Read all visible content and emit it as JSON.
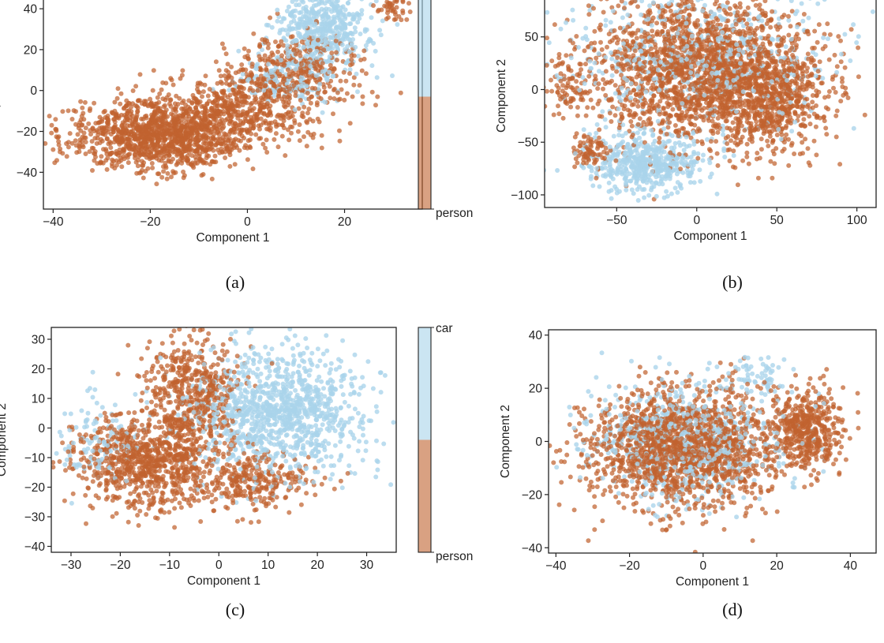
{
  "colors": {
    "person": "#c0622f",
    "car": "#a9d3ea",
    "frame": "#222222"
  },
  "colorbar": {
    "top_label": "car",
    "bottom_label": "person"
  },
  "chart_data": [
    {
      "type": "scatter",
      "caption": "(a)",
      "xlabel": "Component 1",
      "ylabel": "Component 2",
      "xlim": [
        -42,
        36
      ],
      "ylim": [
        -58,
        52
      ],
      "xticks": [
        "-40",
        "-20",
        "0",
        "20"
      ],
      "yticks": [
        "-40",
        "-20",
        "0",
        "20",
        "40"
      ],
      "colorbar_labels": [
        "person"
      ],
      "series": [
        {
          "name": "person",
          "clusters": [
            {
              "cx": -18,
              "cy": -22,
              "sx": 9,
              "sy": 8,
              "n": 1200
            },
            {
              "cx": -2,
              "cy": -8,
              "sx": 8,
              "sy": 9,
              "n": 500
            },
            {
              "cx": 10,
              "cy": 10,
              "sx": 7,
              "sy": 10,
              "n": 350
            },
            {
              "cx": 30,
              "cy": 40,
              "sx": 2,
              "sy": 3,
              "n": 40
            }
          ]
        },
        {
          "name": "car",
          "clusters": [
            {
              "cx": 16,
              "cy": 30,
              "sx": 5,
              "sy": 10,
              "n": 500
            },
            {
              "cx": 8,
              "cy": 6,
              "sx": 6,
              "sy": 6,
              "n": 150
            }
          ]
        }
      ]
    },
    {
      "type": "scatter",
      "caption": "(b)",
      "xlabel": "Component 1",
      "ylabel": "Component 2",
      "xlim": [
        -95,
        112
      ],
      "ylim": [
        -112,
        100
      ],
      "xticks": [
        "-50",
        "0",
        "50",
        "100"
      ],
      "yticks": [
        "-100",
        "-50",
        "0",
        "50",
        "100"
      ],
      "colorbar_labels": [],
      "series": [
        {
          "name": "person",
          "clusters": [
            {
              "cx": 0,
              "cy": 20,
              "sx": 35,
              "sy": 35,
              "n": 1900
            },
            {
              "cx": 45,
              "cy": -10,
              "sx": 18,
              "sy": 25,
              "n": 600
            },
            {
              "cx": -65,
              "cy": -60,
              "sx": 6,
              "sy": 8,
              "n": 80
            },
            {
              "cx": -80,
              "cy": 0,
              "sx": 6,
              "sy": 12,
              "n": 60
            }
          ]
        },
        {
          "name": "car",
          "clusters": [
            {
              "cx": -30,
              "cy": -70,
              "sx": 18,
              "sy": 14,
              "n": 500
            },
            {
              "cx": 0,
              "cy": 30,
              "sx": 40,
              "sy": 35,
              "n": 600
            }
          ]
        }
      ]
    },
    {
      "type": "scatter",
      "caption": "(c)",
      "xlabel": "Component 1",
      "ylabel": "Component 2",
      "xlim": [
        -34,
        36
      ],
      "ylim": [
        -42,
        34
      ],
      "xticks": [
        "-30",
        "-20",
        "-10",
        "0",
        "10",
        "20",
        "30"
      ],
      "yticks": [
        "-40",
        "-30",
        "-20",
        "-10",
        "0",
        "10",
        "20",
        "30"
      ],
      "colorbar_labels": [
        "car",
        "person"
      ],
      "series": [
        {
          "name": "person",
          "clusters": [
            {
              "cx": -14,
              "cy": -12,
              "sx": 8,
              "sy": 8,
              "n": 900
            },
            {
              "cx": -5,
              "cy": 12,
              "sx": 5,
              "sy": 10,
              "n": 500
            },
            {
              "cx": 8,
              "cy": -18,
              "sx": 6,
              "sy": 4,
              "n": 250
            }
          ]
        },
        {
          "name": "car",
          "clusters": [
            {
              "cx": 12,
              "cy": 5,
              "sx": 9,
              "sy": 11,
              "n": 1100
            },
            {
              "cx": -25,
              "cy": -5,
              "sx": 4,
              "sy": 8,
              "n": 120
            }
          ]
        }
      ]
    },
    {
      "type": "scatter",
      "caption": "(d)",
      "xlabel": "Component 1",
      "ylabel": "Component 2",
      "xlim": [
        -42,
        47
      ],
      "ylim": [
        -42,
        42
      ],
      "xticks": [
        "-40",
        "-20",
        "0",
        "20",
        "40"
      ],
      "yticks": [
        "-40",
        "-20",
        "0",
        "20",
        "40"
      ],
      "colorbar_labels": [],
      "series": [
        {
          "name": "person",
          "clusters": [
            {
              "cx": -5,
              "cy": -2,
              "sx": 13,
              "sy": 11,
              "n": 1700
            },
            {
              "cx": 28,
              "cy": 4,
              "sx": 5,
              "sy": 8,
              "n": 450
            }
          ]
        },
        {
          "name": "car",
          "clusters": [
            {
              "cx": -5,
              "cy": 0,
              "sx": 14,
              "sy": 11,
              "n": 700
            },
            {
              "cx": 15,
              "cy": 24,
              "sx": 4,
              "sy": 4,
              "n": 60
            }
          ]
        }
      ]
    }
  ]
}
